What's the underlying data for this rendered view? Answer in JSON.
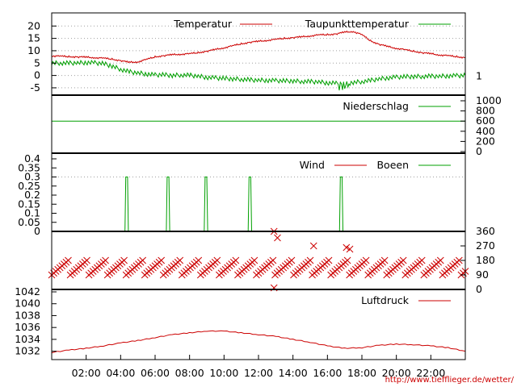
{
  "credit": "http://www.tiefflieger.de/wetter/",
  "colors": {
    "red": "#cc0000",
    "green": "#00a000",
    "grid": "#a0a0a0"
  },
  "chart_data": [
    {
      "type": "line",
      "panel": "temperature",
      "ylim": [
        -6,
        24
      ],
      "yticks": [
        "20",
        "15",
        "10",
        "5",
        "0",
        "-5"
      ],
      "ytick_values": [
        20,
        15,
        10,
        5,
        0,
        -5
      ],
      "right_label": "1",
      "right_label_value": 0,
      "legend_placement": "top-right",
      "x_hours": [
        0,
        0.5,
        1,
        1.5,
        2,
        2.5,
        3,
        3.5,
        4,
        4.5,
        5,
        5.5,
        6,
        6.5,
        7,
        7.5,
        8,
        8.5,
        9,
        9.5,
        10,
        10.5,
        11,
        11.5,
        12,
        12.5,
        13,
        13.5,
        14,
        14.5,
        15,
        15.5,
        16,
        16.5,
        17,
        17.5,
        18,
        18.5,
        19,
        19.5,
        20,
        20.5,
        21,
        21.5,
        22,
        22.5,
        23,
        23.5,
        24
      ],
      "series": [
        {
          "name": "Temperatur",
          "color": "#cc0000",
          "values": [
            7.9,
            7.8,
            7.6,
            7.5,
            7.4,
            7.2,
            7,
            6.6,
            6,
            5.3,
            5.5,
            6.5,
            7.5,
            8,
            8.4,
            8.6,
            8.8,
            9.2,
            9.8,
            10.5,
            11.2,
            12,
            12.8,
            13.4,
            13.8,
            14.2,
            14.6,
            15,
            15.3,
            15.6,
            16,
            16.4,
            16.5,
            16.8,
            17.5,
            17.8,
            16.5,
            14,
            12.6,
            11.7,
            11,
            10.4,
            9.8,
            9.2,
            8.8,
            8.3,
            8,
            7.6,
            7.2
          ]
        },
        {
          "name": "Taupunkttemperatur",
          "color": "#00a000",
          "values": [
            5,
            5,
            5,
            5.1,
            5.2,
            5.1,
            4.8,
            3.8,
            2.5,
            1.5,
            1,
            0.6,
            0.2,
            0.3,
            0,
            0.2,
            0.1,
            -0.3,
            -0.8,
            -1,
            -1.2,
            -1.4,
            -1.5,
            -1.8,
            -1.9,
            -2,
            -2.1,
            -2.2,
            -2.2,
            -2.4,
            -2.5,
            -2.6,
            -3,
            -3.2,
            -3.5,
            -2.8,
            -2.5,
            -2,
            -1.4,
            -1,
            -0.7,
            -0.5,
            -0.4,
            -0.4,
            -0.3,
            -0.3,
            -0.2,
            -0.1,
            0
          ]
        }
      ]
    },
    {
      "type": "line",
      "panel": "precipitation",
      "ylim": [
        0,
        1000
      ],
      "right_yticks": [
        "1000",
        "800",
        "600",
        "400",
        "200",
        "0"
      ],
      "right_ytick_values": [
        1000,
        800,
        600,
        400,
        200,
        0
      ],
      "legend_placement": "top-right",
      "series": [
        {
          "name": "Niederschlag",
          "color": "#00a000",
          "x_hours": [
            0,
            24
          ],
          "values": [
            600,
            600
          ]
        }
      ]
    },
    {
      "type": "line",
      "panel": "wind",
      "ylim": [
        0,
        0.4
      ],
      "yticks": [
        "0.4",
        "0.35",
        "0.3",
        "0.25",
        "0.2",
        "0.15",
        "0.1",
        "0.05",
        "0"
      ],
      "ytick_values": [
        0.4,
        0.35,
        0.3,
        0.25,
        0.2,
        0.15,
        0.1,
        0.05,
        0
      ],
      "legend_placement": "top-right",
      "series": [
        {
          "name": "Wind",
          "color": "#cc0000",
          "x_hours": [
            0,
            24
          ],
          "values": [
            0,
            0
          ]
        },
        {
          "name": "Boeen",
          "color": "#00a000",
          "x_hours": [
            0,
            4.25,
            4.3,
            4.4,
            4.45,
            6.65,
            6.7,
            6.8,
            6.85,
            8.85,
            8.9,
            9.0,
            9.05,
            11.4,
            11.45,
            11.55,
            11.6,
            16.7,
            16.75,
            16.85,
            16.9,
            24
          ],
          "values": [
            0,
            0,
            0.3,
            0.3,
            0,
            0,
            0.3,
            0.3,
            0,
            0,
            0.3,
            0.3,
            0,
            0,
            0.3,
            0.3,
            0,
            0,
            0.3,
            0.3,
            0,
            0
          ]
        }
      ]
    },
    {
      "type": "scatter",
      "panel": "wind-direction",
      "ylim": [
        0,
        360
      ],
      "right_yticks": [
        "360",
        "270",
        "180",
        "90",
        "0"
      ],
      "right_ytick_values": [
        360,
        270,
        180,
        90,
        0
      ],
      "marker": "x",
      "color": "#cc0000",
      "base_direction": 135,
      "spread": 45,
      "outliers": [
        [
          12.9,
          10
        ],
        [
          12.9,
          360
        ],
        [
          13.1,
          320
        ],
        [
          15.2,
          270
        ],
        [
          17.1,
          260
        ],
        [
          17.3,
          250
        ]
      ]
    },
    {
      "type": "line",
      "panel": "pressure",
      "ylim": [
        1031,
        1042
      ],
      "yticks": [
        "1042",
        "1040",
        "1038",
        "1036",
        "1034",
        "1032"
      ],
      "ytick_values": [
        1042,
        1040,
        1038,
        1036,
        1034,
        1032
      ],
      "legend_placement": "top-right",
      "series": [
        {
          "name": "Luftdruck",
          "color": "#cc0000",
          "x_hours": [
            0,
            1,
            2,
            3,
            4,
            5,
            6,
            7,
            8,
            9,
            10,
            11,
            12,
            13,
            14,
            15,
            16,
            17,
            18,
            19,
            20,
            21,
            22,
            23,
            24
          ],
          "values": [
            1031.8,
            1032.2,
            1032.5,
            1032.9,
            1033.4,
            1033.8,
            1034.3,
            1034.8,
            1035.1,
            1035.4,
            1035.4,
            1035.1,
            1034.8,
            1034.5,
            1034,
            1033.5,
            1032.9,
            1032.5,
            1032.6,
            1033,
            1033.2,
            1033.1,
            1032.9,
            1032.6,
            1032
          ]
        }
      ]
    }
  ],
  "xaxis": {
    "xlim_hours": [
      0,
      24
    ],
    "ticks": [
      "02:00",
      "04:00",
      "06:00",
      "08:00",
      "10:00",
      "12:00",
      "14:00",
      "16:00",
      "18:00",
      "20:00",
      "22:00"
    ],
    "tick_hours": [
      2,
      4,
      6,
      8,
      10,
      12,
      14,
      16,
      18,
      20,
      22
    ]
  }
}
